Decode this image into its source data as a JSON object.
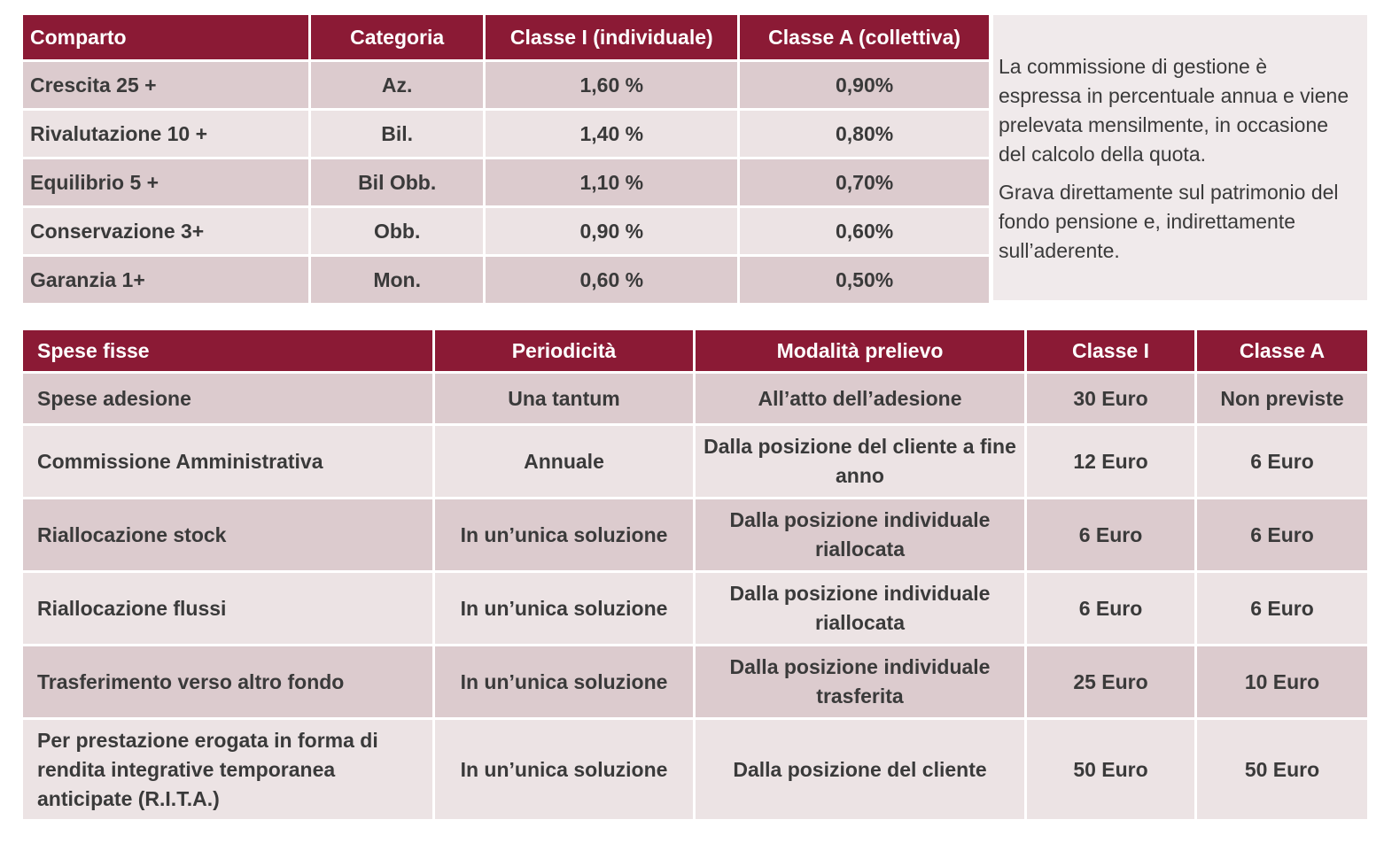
{
  "fees_table": {
    "headers": [
      "Comparto",
      "Categoria",
      "Classe I (individuale)",
      "Classe A (collettiva)"
    ],
    "rows": [
      {
        "comparto": "Crescita 25 +",
        "categoria": "Az.",
        "classe_i": "1,60 %",
        "classe_a": "0,90%"
      },
      {
        "comparto": "Rivalutazione 10 +",
        "categoria": "Bil.",
        "classe_i": "1,40 %",
        "classe_a": "0,80%"
      },
      {
        "comparto": "Equilibrio 5 +",
        "categoria": "Bil Obb.",
        "classe_i": "1,10 %",
        "classe_a": "0,70%"
      },
      {
        "comparto": "Conservazione 3+",
        "categoria": "Obb.",
        "classe_i": "0,90 %",
        "classe_a": "0,60%"
      },
      {
        "comparto": "Garanzia 1+",
        "categoria": "Mon.",
        "classe_i": "0,60 %",
        "classe_a": "0,50%"
      }
    ]
  },
  "note": {
    "paragraph1": "La commissione di gestione è espressa in percentuale annua e viene prelevata mensilmente, in occasione del calcolo della quota.",
    "paragraph2": "Grava direttamente sul patrimonio del fondo pensione e, indirettamente sull’aderente."
  },
  "fixed_costs_table": {
    "headers": [
      "Spese fisse",
      "Periodicità",
      "Modalità prelievo",
      "Classe I",
      "Classe A"
    ],
    "rows": [
      {
        "spesa": "Spese adesione",
        "periodicita": "Una tantum",
        "modalita": "All’atto dell’adesione",
        "classe_i": "30 Euro",
        "classe_a": "Non previste"
      },
      {
        "spesa": "Commissione Amministrativa",
        "periodicita": "Annuale",
        "modalita": "Dalla posizione del cliente a fine anno",
        "classe_i": "12 Euro",
        "classe_a": "6 Euro"
      },
      {
        "spesa": "Riallocazione stock",
        "periodicita": "In un’unica soluzione",
        "modalita": "Dalla posizione individuale riallocata",
        "classe_i": "6 Euro",
        "classe_a": "6 Euro"
      },
      {
        "spesa": "Riallocazione flussi",
        "periodicita": "In un’unica soluzione",
        "modalita": "Dalla posizione individuale riallocata",
        "classe_i": "6 Euro",
        "classe_a": "6 Euro"
      },
      {
        "spesa": "Trasferimento verso altro fondo",
        "periodicita": "In un’unica soluzione",
        "modalita": "Dalla posizione individuale trasferita",
        "classe_i": "25 Euro",
        "classe_a": "10 Euro"
      },
      {
        "spesa": "Per prestazione erogata in forma di rendita integrative temporanea anticipate (R.I.T.A.)",
        "periodicita": "In un’unica soluzione",
        "modalita": "Dalla posizione del cliente",
        "classe_i": "50 Euro",
        "classe_a": "50 Euro"
      }
    ]
  },
  "colors": {
    "header_bg": "#8b1a35",
    "row_dark": "#dccbce",
    "row_light": "#ece3e4",
    "note_bg": "#f0eaeb"
  }
}
